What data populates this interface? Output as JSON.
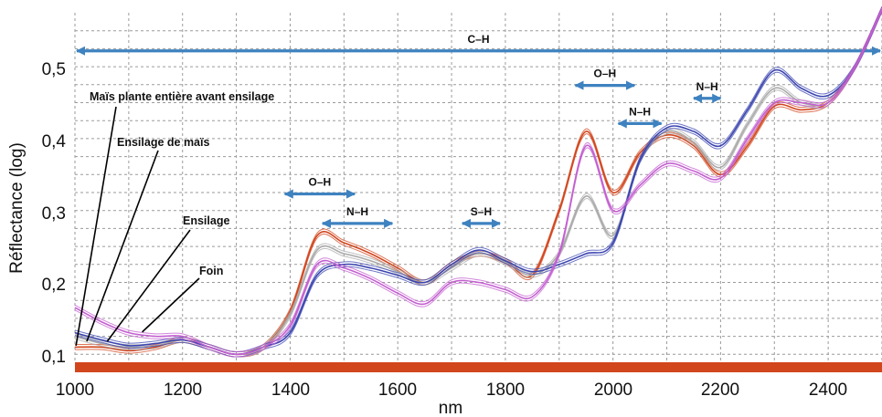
{
  "chart_data": {
    "type": "line",
    "title": "",
    "xlabel": "nm",
    "ylabel": "Réflectance (log)",
    "xlim": [
      1000,
      2500
    ],
    "ylim": [
      0.075,
      0.575
    ],
    "x_ticks": [
      "1000",
      "1200",
      "1400",
      "1600",
      "1800",
      "2000",
      "2200",
      "2400"
    ],
    "y_ticks": [
      "0,1",
      "0,2",
      "0,3",
      "0,4",
      "0,5"
    ],
    "grid": true,
    "x": [
      1000,
      1050,
      1100,
      1150,
      1200,
      1250,
      1300,
      1350,
      1400,
      1450,
      1500,
      1550,
      1600,
      1650,
      1700,
      1750,
      1800,
      1850,
      1900,
      1950,
      2000,
      2050,
      2100,
      2150,
      2200,
      2250,
      2300,
      2350,
      2400,
      2450,
      2500
    ],
    "series": [
      {
        "name": "Maïs plante entière avant ensilage",
        "color": "#d2461e",
        "values": [
          0.11,
          0.11,
          0.105,
          0.11,
          0.12,
          0.11,
          0.1,
          0.11,
          0.16,
          0.265,
          0.255,
          0.24,
          0.22,
          0.2,
          0.225,
          0.24,
          0.23,
          0.21,
          0.3,
          0.41,
          0.325,
          0.38,
          0.405,
          0.39,
          0.35,
          0.39,
          0.445,
          0.44,
          0.45,
          0.5,
          0.58
        ]
      },
      {
        "name": "Ensilage de maïs",
        "color": "#aaaaaa",
        "values": [
          0.125,
          0.115,
          0.11,
          0.112,
          0.12,
          0.11,
          0.1,
          0.11,
          0.155,
          0.245,
          0.24,
          0.23,
          0.215,
          0.2,
          0.22,
          0.24,
          0.228,
          0.21,
          0.24,
          0.32,
          0.265,
          0.37,
          0.41,
          0.395,
          0.36,
          0.42,
          0.47,
          0.45,
          0.45,
          0.5,
          0.58
        ]
      },
      {
        "name": "Ensilage",
        "color": "#3b45b0",
        "values": [
          0.13,
          0.12,
          0.112,
          0.115,
          0.12,
          0.11,
          0.1,
          0.11,
          0.13,
          0.21,
          0.225,
          0.22,
          0.21,
          0.2,
          0.225,
          0.245,
          0.23,
          0.215,
          0.225,
          0.24,
          0.255,
          0.37,
          0.415,
          0.41,
          0.39,
          0.44,
          0.495,
          0.47,
          0.46,
          0.5,
          0.58
        ]
      },
      {
        "name": "Foin",
        "color": "#c35fd0",
        "values": [
          0.165,
          0.145,
          0.13,
          0.125,
          0.125,
          0.11,
          0.1,
          0.11,
          0.14,
          0.225,
          0.22,
          0.205,
          0.185,
          0.17,
          0.2,
          0.2,
          0.19,
          0.18,
          0.24,
          0.39,
          0.3,
          0.335,
          0.365,
          0.355,
          0.345,
          0.4,
          0.45,
          0.45,
          0.45,
          0.5,
          0.58
        ]
      }
    ],
    "bands": [
      {
        "label": "C–H",
        "from": 1000,
        "to": 2500,
        "y": 0.522
      },
      {
        "label": "O–H",
        "from": 1390,
        "to": 1520,
        "y": 0.323
      },
      {
        "label": "N–H",
        "from": 1460,
        "to": 1590,
        "y": 0.282
      },
      {
        "label": "S–H",
        "from": 1720,
        "to": 1790,
        "y": 0.282
      },
      {
        "label": "O–H",
        "from": 1930,
        "to": 2040,
        "y": 0.474
      },
      {
        "label": "N–H",
        "from": 2010,
        "to": 2090,
        "y": 0.421
      },
      {
        "label": "N–H",
        "from": 2150,
        "to": 2200,
        "y": 0.456
      }
    ],
    "baseline_color": "#d2461e",
    "band_color": "#3e82c0"
  }
}
